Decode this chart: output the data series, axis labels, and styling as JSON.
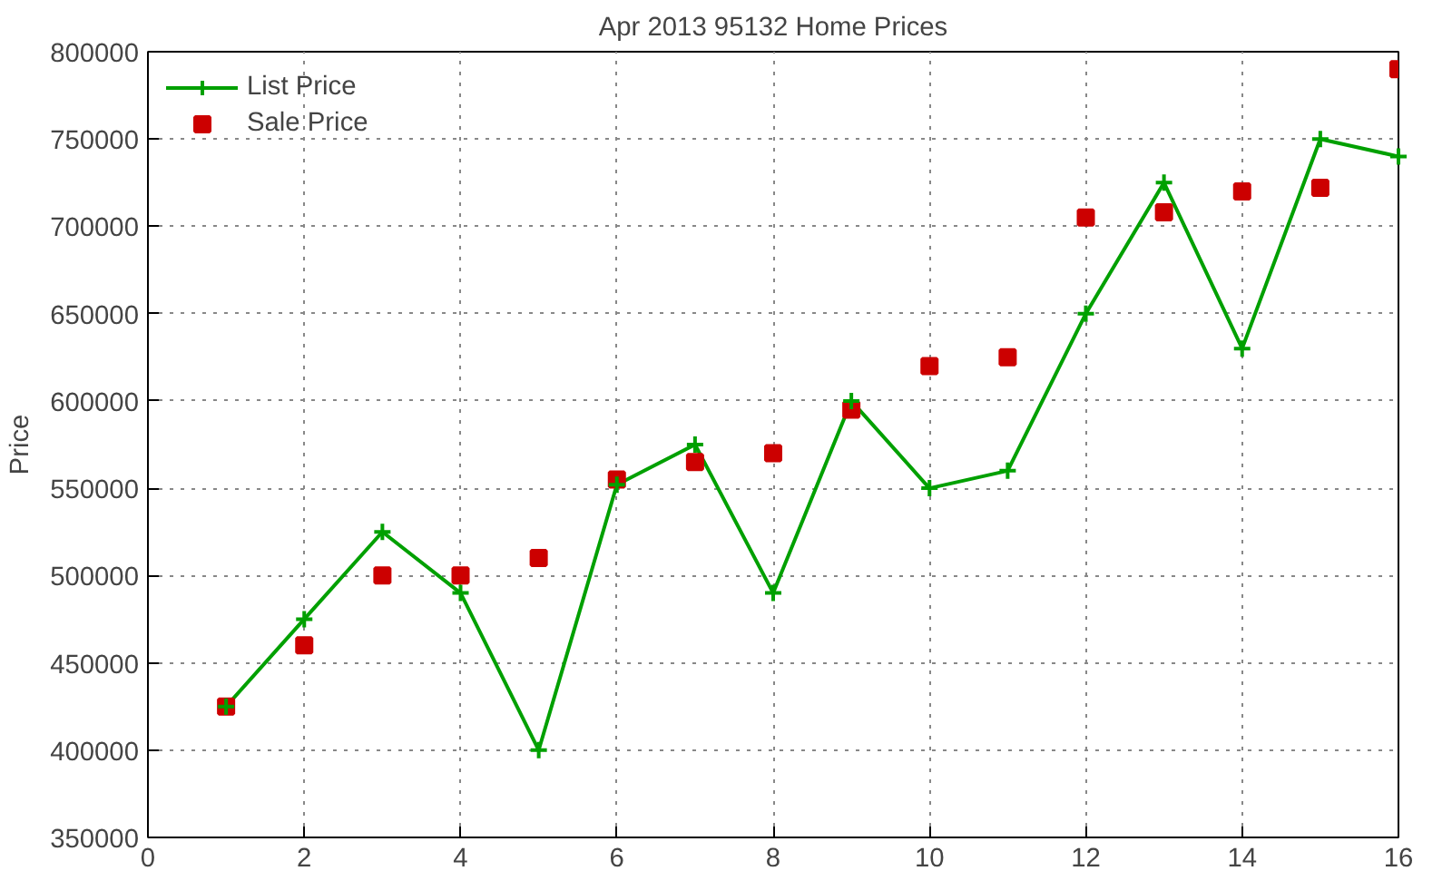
{
  "chart_data": {
    "type": "line",
    "title": "Apr 2013 95132 Home Prices",
    "ylabel": "Price",
    "x": [
      1,
      2,
      3,
      4,
      5,
      6,
      7,
      8,
      9,
      10,
      11,
      12,
      13,
      14,
      15,
      16
    ],
    "series": [
      {
        "name": "List Price",
        "marker": "cross",
        "color": "#00a000",
        "values": [
          425000,
          475000,
          525000,
          490000,
          400000,
          552000,
          575000,
          490000,
          600000,
          550000,
          560000,
          650000,
          725000,
          630000,
          750000,
          740000
        ]
      },
      {
        "name": "Sale Price",
        "type": "scatter",
        "marker": "square",
        "color": "#cc0000",
        "values": [
          425000,
          460000,
          500000,
          500000,
          510000,
          555000,
          565000,
          570000,
          595000,
          620000,
          625000,
          705000,
          708000,
          720000,
          722000,
          790000
        ]
      }
    ],
    "xlim": [
      0,
      16
    ],
    "xticks": [
      0,
      2,
      4,
      6,
      8,
      10,
      12,
      14,
      16
    ],
    "ylim": [
      350000,
      800000
    ],
    "yticks": [
      350000,
      400000,
      450000,
      500000,
      550000,
      600000,
      650000,
      700000,
      750000,
      800000
    ],
    "grid": true,
    "legend": "top left",
    "line_style": "solid"
  }
}
